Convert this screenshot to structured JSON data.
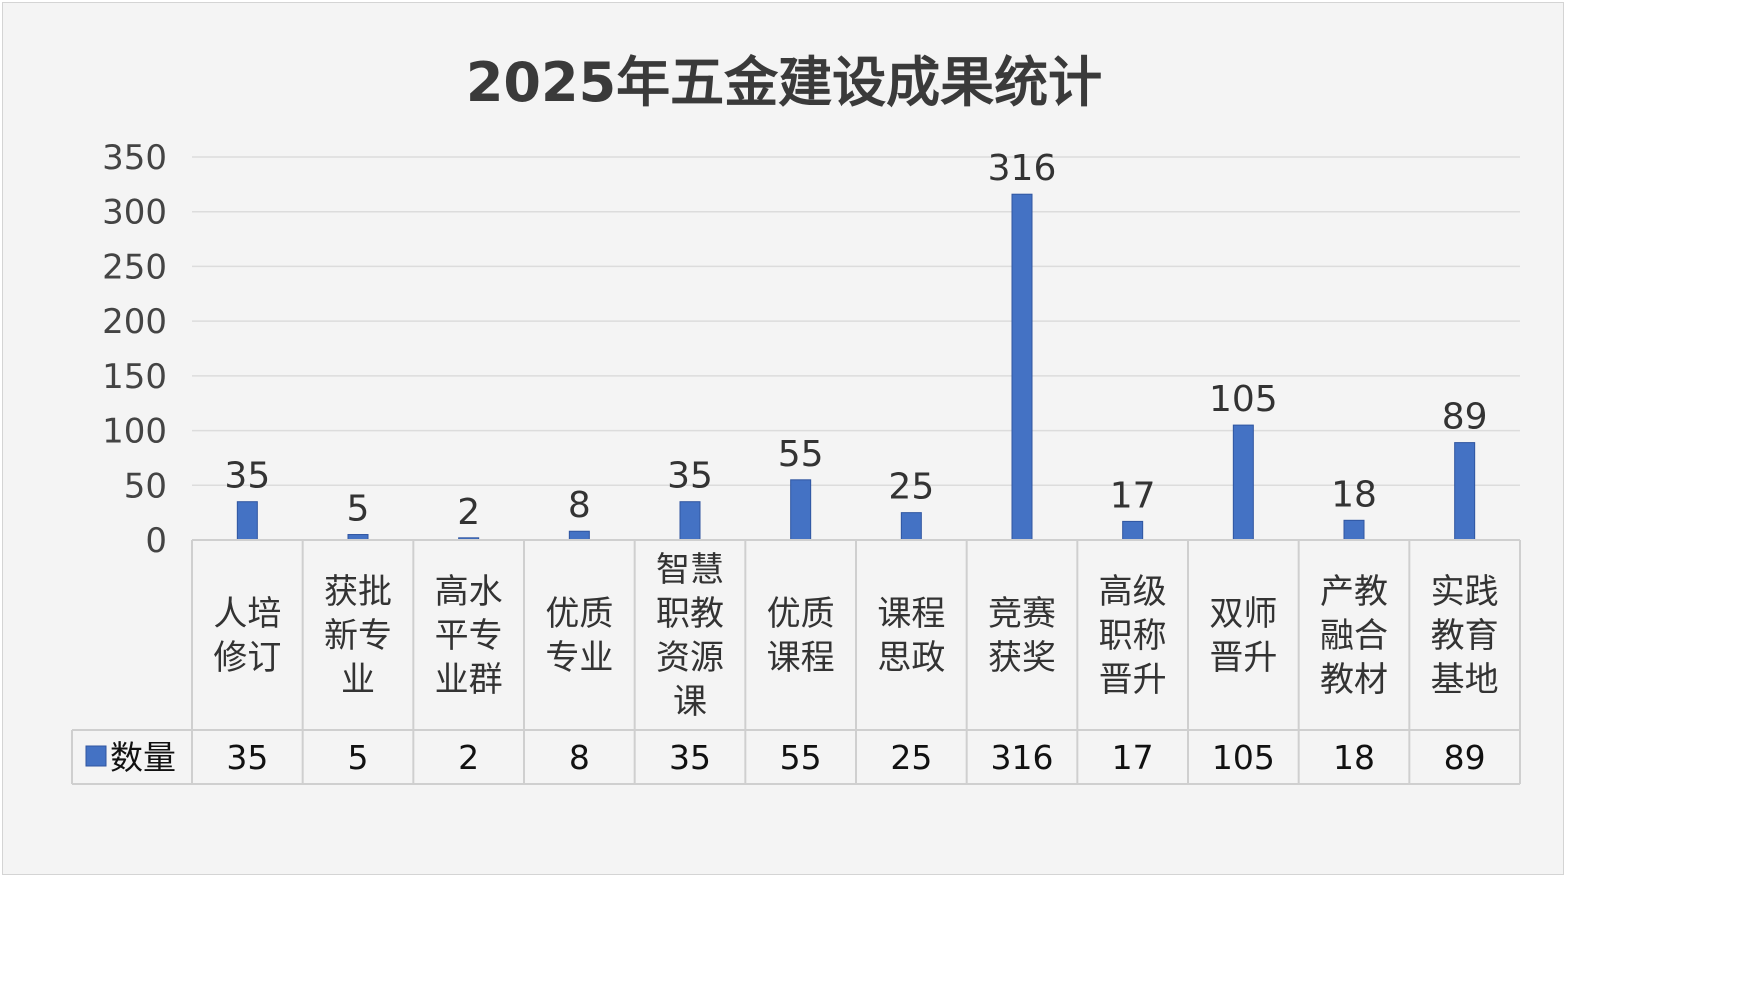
{
  "chart_data": {
    "type": "bar",
    "title": "2025年五金建设成果统计",
    "categories": [
      [
        "人培",
        "修订"
      ],
      [
        "获批",
        "新专",
        "业"
      ],
      [
        "高水",
        "平专",
        "业群"
      ],
      [
        "优质",
        "专业"
      ],
      [
        "智慧",
        "职教",
        "资源",
        "课"
      ],
      [
        "优质",
        "课程"
      ],
      [
        "课程",
        "思政"
      ],
      [
        "竞赛",
        "获奖"
      ],
      [
        "高级",
        "职称",
        "晋升"
      ],
      [
        "双师",
        "晋升"
      ],
      [
        "产教",
        "融合",
        "教材"
      ],
      [
        "实践",
        "教育",
        "基地"
      ]
    ],
    "series": [
      {
        "name": "数量",
        "values": [
          35,
          5,
          2,
          8,
          35,
          55,
          25,
          316,
          17,
          105,
          18,
          89
        ],
        "color": "#4472c4"
      }
    ],
    "y_ticks": [
      "0",
      "50",
      "100",
      "150",
      "200",
      "250",
      "300",
      "350"
    ],
    "ylim": [
      0,
      350
    ],
    "grid": true,
    "legend": "data-table",
    "data_table": true
  }
}
